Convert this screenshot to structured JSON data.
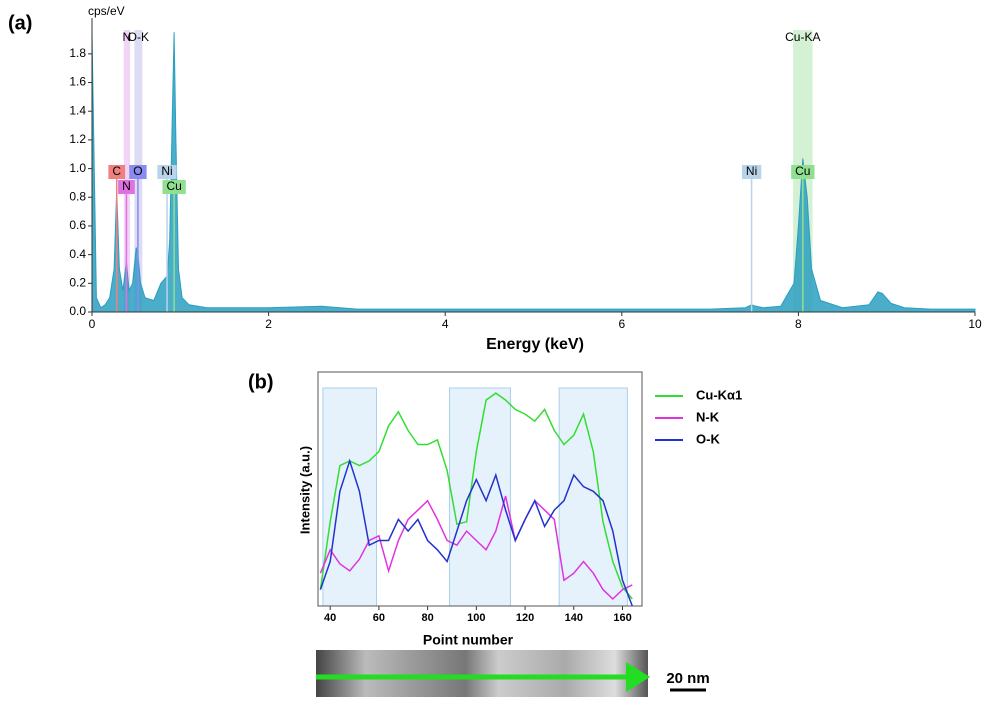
{
  "chart_data": [
    {
      "type": "spectrum",
      "panel_label": "(a)",
      "y_label": "cps/eV",
      "x_label": "Energy (keV)",
      "xlim": [
        0,
        10
      ],
      "xticks": [
        0,
        2,
        4,
        6,
        8,
        10
      ],
      "ylim": [
        0,
        2.05
      ],
      "yticks": [
        {
          "value": 0,
          "label": "0.0"
        },
        0.2,
        0.4,
        0.6,
        0.8,
        {
          "value": 1,
          "label": "1.0"
        },
        1.2,
        1.4,
        1.6,
        1.8
      ],
      "color": "#2a9fc0",
      "x": [
        0,
        0.05,
        0.1,
        0.15,
        0.2,
        0.25,
        0.28,
        0.31,
        0.35,
        0.39,
        0.42,
        0.46,
        0.5,
        0.52,
        0.55,
        0.6,
        0.7,
        0.78,
        0.85,
        0.88,
        0.91,
        0.93,
        0.95,
        0.98,
        1.02,
        1.1,
        1.3,
        1.6,
        2,
        2.6,
        3,
        4,
        5,
        6,
        7,
        7.4,
        7.47,
        7.52,
        7.6,
        7.8,
        7.95,
        8.0,
        8.05,
        8.1,
        8.15,
        8.25,
        8.5,
        8.8,
        8.9,
        8.95,
        9.05,
        9.2,
        9.5,
        10
      ],
      "values": [
        1.95,
        0.1,
        0.03,
        0.05,
        0.1,
        0.3,
        0.85,
        0.3,
        0.15,
        0.35,
        0.15,
        0.2,
        0.45,
        0.4,
        0.2,
        0.1,
        0.08,
        0.2,
        0.25,
        0.5,
        1.4,
        1.95,
        1.2,
        0.3,
        0.1,
        0.05,
        0.03,
        0.03,
        0.03,
        0.04,
        0.02,
        0.02,
        0.02,
        0.02,
        0.02,
        0.03,
        0.05,
        0.04,
        0.03,
        0.04,
        0.2,
        0.6,
        1.07,
        0.8,
        0.3,
        0.08,
        0.03,
        0.05,
        0.14,
        0.13,
        0.06,
        0.03,
        0.02,
        0.02
      ],
      "bands": [
        {
          "label": "N",
          "x_range": [
            0.36,
            0.43
          ],
          "color": "#e8b8f0"
        },
        {
          "label": "O-K",
          "x_range": [
            0.48,
            0.57
          ],
          "color": "#c4c4ec"
        },
        {
          "label": "Cu-KA",
          "x_range": [
            7.94,
            8.16
          ],
          "color": "#b8e8b8"
        }
      ],
      "element_markers": [
        {
          "label": "C",
          "x": 0.28,
          "color": "#f08080"
        },
        {
          "label": "N",
          "x": 0.39,
          "color": "#e070e0"
        },
        {
          "label": "O",
          "x": 0.52,
          "color": "#8a8af0"
        },
        {
          "label": "Ni",
          "x": 0.85,
          "color": "#b8d4ea"
        },
        {
          "label": "Cu",
          "x": 0.93,
          "color": "#90e090"
        },
        {
          "label": "Ni",
          "x": 7.47,
          "color": "#b8d4ea"
        },
        {
          "label": "Cu",
          "x": 8.05,
          "color": "#90e090"
        }
      ]
    },
    {
      "type": "line",
      "panel_label": "(b)",
      "x_label": "Point number",
      "y_label": "Intensity (a.u.)",
      "xlim": [
        35,
        168
      ],
      "xticks": [
        40,
        60,
        80,
        100,
        120,
        140,
        160
      ],
      "ylim": [
        0,
        10
      ],
      "shaded_ranges": [
        [
          37,
          59
        ],
        [
          89,
          114
        ],
        [
          134,
          162
        ]
      ],
      "x": [
        36,
        40,
        44,
        48,
        52,
        56,
        60,
        64,
        68,
        72,
        76,
        80,
        84,
        88,
        92,
        96,
        100,
        104,
        108,
        112,
        116,
        120,
        124,
        128,
        132,
        136,
        140,
        144,
        148,
        152,
        156,
        160,
        164
      ],
      "series": [
        {
          "name": "Cu-Kα1",
          "color": "#33dd33",
          "values": [
            0.7,
            3.6,
            6.0,
            6.2,
            6.0,
            6.2,
            6.6,
            7.7,
            8.3,
            7.5,
            6.9,
            6.9,
            7.1,
            5.8,
            3.5,
            3.6,
            6.6,
            8.8,
            9.1,
            8.8,
            8.4,
            8.2,
            7.9,
            8.4,
            7.5,
            6.9,
            7.3,
            8.2,
            6.6,
            3.6,
            1.9,
            0.8,
            0.3
          ]
        },
        {
          "name": "N-K",
          "color": "#e033e0",
          "values": [
            1.4,
            2.4,
            1.8,
            1.5,
            2.0,
            2.8,
            3.0,
            1.5,
            2.8,
            3.7,
            4.1,
            4.5,
            3.7,
            2.8,
            2.6,
            3.2,
            2.8,
            2.4,
            3.2,
            4.7,
            2.8,
            3.7,
            4.5,
            4.1,
            3.7,
            1.1,
            1.4,
            1.9,
            1.4,
            0.7,
            0.3,
            0.7,
            0.9
          ]
        },
        {
          "name": "O-K",
          "color": "#2233cc",
          "values": [
            0.7,
            1.9,
            4.9,
            6.2,
            4.9,
            2.6,
            2.8,
            2.8,
            3.7,
            3.2,
            3.7,
            2.8,
            2.4,
            1.9,
            3.2,
            4.5,
            5.4,
            4.5,
            5.6,
            4.1,
            2.8,
            3.7,
            4.5,
            3.4,
            4.1,
            4.5,
            5.6,
            5.1,
            4.9,
            4.5,
            3.2,
            1.1,
            0
          ]
        }
      ]
    }
  ],
  "image": {
    "scale_bar_label": "20 nm"
  }
}
